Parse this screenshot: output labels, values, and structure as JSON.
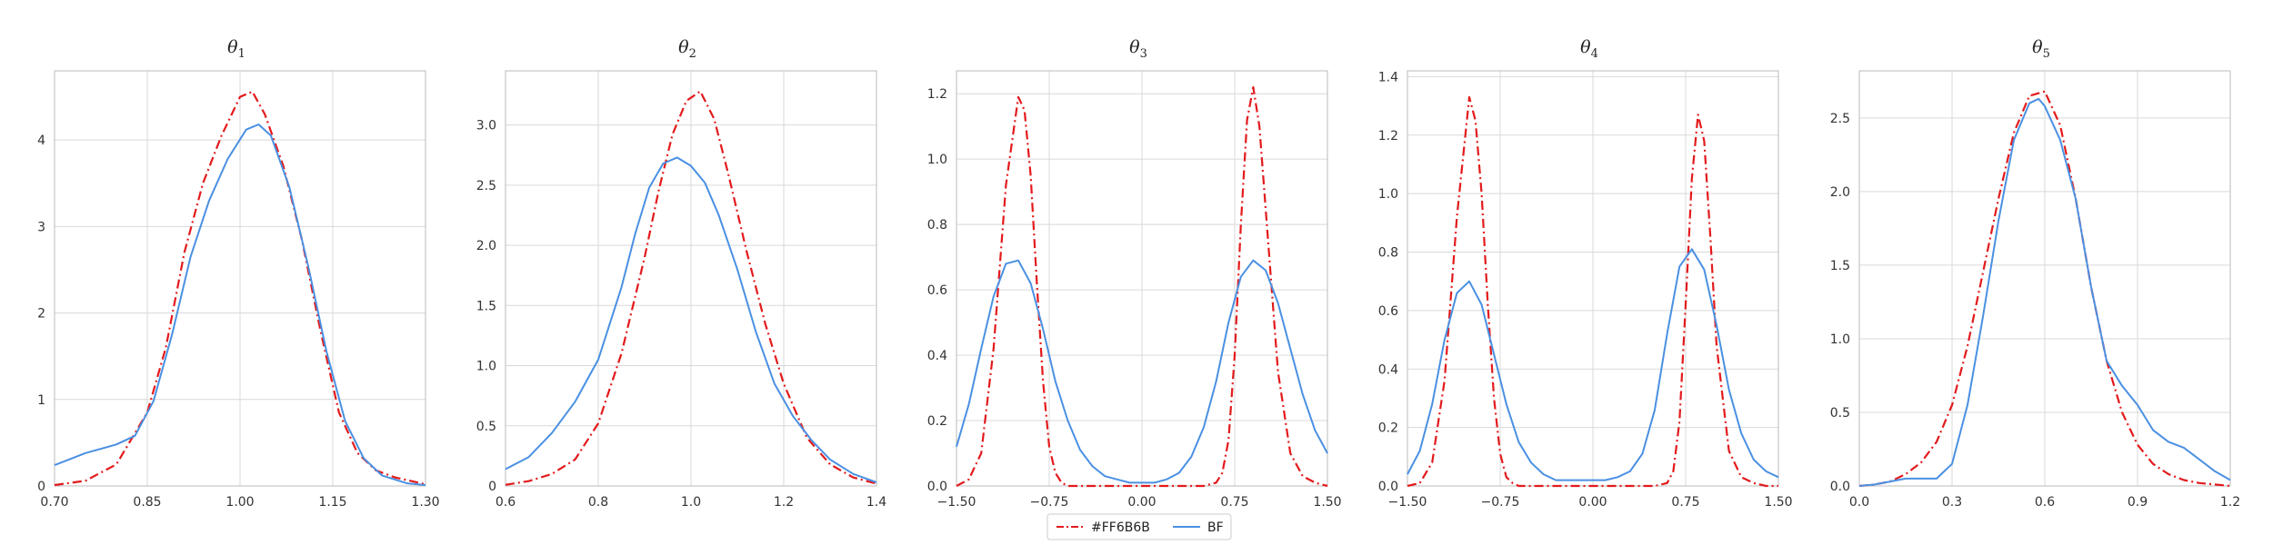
{
  "chart_data": [
    {
      "type": "line",
      "title": "θ",
      "title_sub": "1",
      "xlim": [
        0.7,
        1.3
      ],
      "ylim": [
        0,
        4.8
      ],
      "xticks": [
        0.7,
        0.85,
        1.0,
        1.15,
        1.3
      ],
      "xtick_labels": [
        "0.70",
        "0.85",
        "1.00",
        "1.15",
        "1.30"
      ],
      "yticks": [
        0,
        1,
        2,
        3,
        4
      ],
      "ytick_labels": [
        "0",
        "1",
        "2",
        "3",
        "4"
      ],
      "series": [
        {
          "name": "#FF6B6B",
          "x": [
            0.7,
            0.75,
            0.8,
            0.85,
            0.88,
            0.91,
            0.94,
            0.97,
            1.0,
            1.02,
            1.04,
            1.07,
            1.1,
            1.13,
            1.16,
            1.19,
            1.22,
            1.25,
            1.3
          ],
          "y": [
            0.01,
            0.06,
            0.25,
            0.85,
            1.6,
            2.7,
            3.5,
            4.05,
            4.5,
            4.56,
            4.3,
            3.7,
            2.85,
            1.8,
            0.85,
            0.38,
            0.18,
            0.1,
            0.02
          ]
        },
        {
          "name": "BF",
          "x": [
            0.7,
            0.75,
            0.8,
            0.83,
            0.86,
            0.89,
            0.92,
            0.95,
            0.98,
            1.01,
            1.03,
            1.05,
            1.08,
            1.11,
            1.14,
            1.17,
            1.2,
            1.23,
            1.27,
            1.3
          ],
          "y": [
            0.24,
            0.38,
            0.48,
            0.58,
            0.98,
            1.75,
            2.65,
            3.3,
            3.78,
            4.12,
            4.18,
            4.05,
            3.45,
            2.55,
            1.55,
            0.75,
            0.32,
            0.12,
            0.03,
            0.01
          ]
        }
      ]
    },
    {
      "type": "line",
      "title": "θ",
      "title_sub": "2",
      "xlim": [
        0.6,
        1.4
      ],
      "ylim": [
        0,
        3.45
      ],
      "xticks": [
        0.6,
        0.8,
        1.0,
        1.2,
        1.4
      ],
      "xtick_labels": [
        "0.6",
        "0.8",
        "1.0",
        "1.2",
        "1.4"
      ],
      "yticks": [
        0,
        0.5,
        1.0,
        1.5,
        2.0,
        2.5,
        3.0
      ],
      "ytick_labels": [
        "0",
        "0.5",
        "1.0",
        "1.5",
        "2.0",
        "2.5",
        "3.0"
      ],
      "series": [
        {
          "name": "#FF6B6B",
          "x": [
            0.6,
            0.65,
            0.7,
            0.75,
            0.8,
            0.85,
            0.9,
            0.93,
            0.96,
            0.99,
            1.02,
            1.05,
            1.08,
            1.12,
            1.16,
            1.2,
            1.25,
            1.3,
            1.35,
            1.4
          ],
          "y": [
            0.01,
            0.04,
            0.1,
            0.22,
            0.52,
            1.1,
            1.9,
            2.45,
            2.92,
            3.2,
            3.28,
            3.05,
            2.6,
            1.95,
            1.35,
            0.85,
            0.4,
            0.18,
            0.07,
            0.02
          ]
        },
        {
          "name": "BF",
          "x": [
            0.6,
            0.65,
            0.7,
            0.75,
            0.8,
            0.85,
            0.88,
            0.91,
            0.94,
            0.97,
            1.0,
            1.03,
            1.06,
            1.1,
            1.14,
            1.18,
            1.22,
            1.26,
            1.3,
            1.35,
            1.4
          ],
          "y": [
            0.14,
            0.24,
            0.44,
            0.7,
            1.05,
            1.65,
            2.1,
            2.48,
            2.68,
            2.73,
            2.66,
            2.52,
            2.25,
            1.8,
            1.28,
            0.85,
            0.58,
            0.38,
            0.22,
            0.1,
            0.03
          ]
        }
      ]
    },
    {
      "type": "line",
      "title": "θ",
      "title_sub": "3",
      "xlim": [
        -1.5,
        1.5
      ],
      "ylim": [
        0,
        1.27
      ],
      "xticks": [
        -1.5,
        -0.75,
        0.0,
        0.75,
        1.5
      ],
      "xtick_labels": [
        "−1.50",
        "−0.75",
        "0.00",
        "0.75",
        "1.50"
      ],
      "yticks": [
        0,
        0.2,
        0.4,
        0.6,
        0.8,
        1.0,
        1.2
      ],
      "ytick_labels": [
        "0.0",
        "0.2",
        "0.4",
        "0.6",
        "0.8",
        "1.0",
        "1.2"
      ],
      "series": [
        {
          "name": "#FF6B6B",
          "x": [
            -1.5,
            -1.4,
            -1.3,
            -1.2,
            -1.1,
            -1.0,
            -0.95,
            -0.9,
            -0.85,
            -0.8,
            -0.75,
            -0.7,
            -0.65,
            -0.6,
            -0.5,
            -0.3,
            0.0,
            0.3,
            0.5,
            0.6,
            0.65,
            0.7,
            0.75,
            0.8,
            0.85,
            0.9,
            0.95,
            1.0,
            1.1,
            1.2,
            1.3,
            1.4,
            1.5
          ],
          "y": [
            0.0,
            0.02,
            0.1,
            0.42,
            0.92,
            1.19,
            1.15,
            0.95,
            0.62,
            0.32,
            0.12,
            0.04,
            0.01,
            0.0,
            0.0,
            0.0,
            0.0,
            0.0,
            0.0,
            0.01,
            0.04,
            0.14,
            0.4,
            0.8,
            1.12,
            1.22,
            1.1,
            0.85,
            0.35,
            0.1,
            0.03,
            0.01,
            0.0
          ]
        },
        {
          "name": "BF",
          "x": [
            -1.5,
            -1.4,
            -1.3,
            -1.2,
            -1.1,
            -1.0,
            -0.9,
            -0.8,
            -0.7,
            -0.6,
            -0.5,
            -0.4,
            -0.3,
            -0.2,
            -0.1,
            0.0,
            0.1,
            0.2,
            0.3,
            0.4,
            0.5,
            0.6,
            0.7,
            0.8,
            0.9,
            1.0,
            1.1,
            1.2,
            1.3,
            1.4,
            1.5
          ],
          "y": [
            0.12,
            0.25,
            0.42,
            0.58,
            0.68,
            0.69,
            0.62,
            0.48,
            0.32,
            0.2,
            0.11,
            0.06,
            0.03,
            0.02,
            0.01,
            0.01,
            0.01,
            0.02,
            0.04,
            0.09,
            0.18,
            0.32,
            0.5,
            0.64,
            0.69,
            0.66,
            0.56,
            0.42,
            0.28,
            0.17,
            0.1
          ]
        }
      ]
    },
    {
      "type": "line",
      "title": "θ",
      "title_sub": "4",
      "xlim": [
        -1.5,
        1.5
      ],
      "ylim": [
        0,
        1.42
      ],
      "xticks": [
        -1.5,
        -0.75,
        0.0,
        0.75,
        1.5
      ],
      "xtick_labels": [
        "−1.50",
        "−0.75",
        "0.00",
        "0.75",
        "1.50"
      ],
      "yticks": [
        0,
        0.2,
        0.4,
        0.6,
        0.8,
        1.0,
        1.2,
        1.4
      ],
      "ytick_labels": [
        "0.0",
        "0.2",
        "0.4",
        "0.6",
        "0.8",
        "1.0",
        "1.2",
        "1.4"
      ],
      "series": [
        {
          "name": "#FF6B6B",
          "x": [
            -1.5,
            -1.4,
            -1.3,
            -1.2,
            -1.1,
            -1.0,
            -0.95,
            -0.9,
            -0.85,
            -0.8,
            -0.75,
            -0.7,
            -0.65,
            -0.6,
            -0.5,
            -0.3,
            0.0,
            0.3,
            0.5,
            0.6,
            0.65,
            0.7,
            0.75,
            0.8,
            0.85,
            0.9,
            0.95,
            1.0,
            1.1,
            1.2,
            1.3,
            1.4,
            1.5
          ],
          "y": [
            0.0,
            0.01,
            0.08,
            0.36,
            0.92,
            1.33,
            1.25,
            1.0,
            0.62,
            0.3,
            0.11,
            0.03,
            0.01,
            0.0,
            0.0,
            0.0,
            0.0,
            0.0,
            0.0,
            0.01,
            0.05,
            0.22,
            0.62,
            1.05,
            1.27,
            1.18,
            0.85,
            0.48,
            0.12,
            0.03,
            0.01,
            0.0,
            0.0
          ]
        },
        {
          "name": "BF",
          "x": [
            -1.5,
            -1.4,
            -1.3,
            -1.2,
            -1.1,
            -1.0,
            -0.9,
            -0.8,
            -0.7,
            -0.6,
            -0.5,
            -0.4,
            -0.3,
            -0.2,
            -0.1,
            0.0,
            0.1,
            0.2,
            0.3,
            0.4,
            0.5,
            0.6,
            0.7,
            0.8,
            0.9,
            1.0,
            1.1,
            1.2,
            1.3,
            1.4,
            1.5
          ],
          "y": [
            0.04,
            0.12,
            0.28,
            0.5,
            0.66,
            0.7,
            0.62,
            0.45,
            0.28,
            0.15,
            0.08,
            0.04,
            0.02,
            0.02,
            0.02,
            0.02,
            0.02,
            0.03,
            0.05,
            0.11,
            0.26,
            0.52,
            0.75,
            0.81,
            0.74,
            0.55,
            0.33,
            0.18,
            0.09,
            0.05,
            0.03
          ]
        }
      ]
    },
    {
      "type": "line",
      "title": "θ",
      "title_sub": "5",
      "xlim": [
        0.0,
        1.2
      ],
      "ylim": [
        0,
        2.82
      ],
      "xticks": [
        0.0,
        0.3,
        0.6,
        0.9,
        1.2
      ],
      "xtick_labels": [
        "0.0",
        "0.3",
        "0.6",
        "0.9",
        "1.2"
      ],
      "yticks": [
        0,
        0.5,
        1.0,
        1.5,
        2.0,
        2.5
      ],
      "ytick_labels": [
        "0.0",
        "0.5",
        "1.0",
        "1.5",
        "2.0",
        "2.5"
      ],
      "series": [
        {
          "name": "#FF6B6B",
          "x": [
            0.0,
            0.05,
            0.1,
            0.15,
            0.2,
            0.25,
            0.3,
            0.35,
            0.4,
            0.45,
            0.5,
            0.55,
            0.6,
            0.65,
            0.7,
            0.75,
            0.8,
            0.85,
            0.9,
            0.95,
            1.0,
            1.05,
            1.1,
            1.15,
            1.2
          ],
          "y": [
            0.0,
            0.01,
            0.03,
            0.08,
            0.16,
            0.3,
            0.55,
            0.95,
            1.45,
            1.95,
            2.4,
            2.65,
            2.68,
            2.45,
            1.95,
            1.35,
            0.85,
            0.5,
            0.28,
            0.15,
            0.08,
            0.04,
            0.02,
            0.01,
            0.0
          ]
        },
        {
          "name": "BF",
          "x": [
            0.0,
            0.05,
            0.1,
            0.15,
            0.2,
            0.25,
            0.3,
            0.35,
            0.4,
            0.45,
            0.5,
            0.55,
            0.58,
            0.6,
            0.65,
            0.7,
            0.75,
            0.8,
            0.85,
            0.9,
            0.95,
            1.0,
            1.05,
            1.1,
            1.15,
            1.2
          ],
          "y": [
            0.0,
            0.01,
            0.03,
            0.05,
            0.05,
            0.05,
            0.15,
            0.55,
            1.15,
            1.8,
            2.35,
            2.6,
            2.63,
            2.58,
            2.35,
            1.95,
            1.35,
            0.85,
            0.68,
            0.55,
            0.38,
            0.3,
            0.26,
            0.18,
            0.1,
            0.04
          ]
        }
      ]
    }
  ],
  "legend": {
    "items": [
      {
        "label": "#FF6B6B",
        "color": "#e31a1c",
        "style": "dashdot"
      },
      {
        "label": "BF",
        "color": "#4a90e2",
        "style": "solid"
      }
    ]
  },
  "colors": {
    "series_1": "#e31a1c",
    "series_2": "#4a90e2",
    "grid": "#d9d9d9",
    "axis": "#bbbbbb"
  }
}
